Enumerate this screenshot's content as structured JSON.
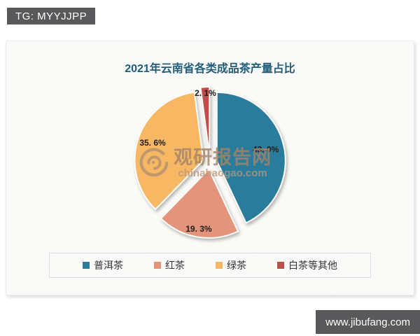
{
  "overlays": {
    "top_left_tag": "TG: MYYJJPP",
    "bottom_right_url": "www.jibufang.com"
  },
  "watermark": {
    "name": "观研报告网",
    "domain": "chinabaogao.com"
  },
  "chart_data": {
    "type": "pie",
    "title": "2021年云南省各类成品茶产量占比",
    "categories": [
      "普洱茶",
      "红茶",
      "绿茶",
      "白茶等其他"
    ],
    "values": [
      43.0,
      19.3,
      35.6,
      2.1
    ],
    "slice_labels": [
      "43. 0%",
      "19. 3%",
      "35. 6%",
      "2. 1%"
    ],
    "colors": [
      "#2b7c9d",
      "#e5947b",
      "#f8b763",
      "#bf4e4a"
    ],
    "title_color": "#215d7a",
    "label_color": "#1f1f1f",
    "start_angle_deg": -90,
    "direction": "clockwise",
    "exploded": true,
    "legend_position": "bottom"
  }
}
